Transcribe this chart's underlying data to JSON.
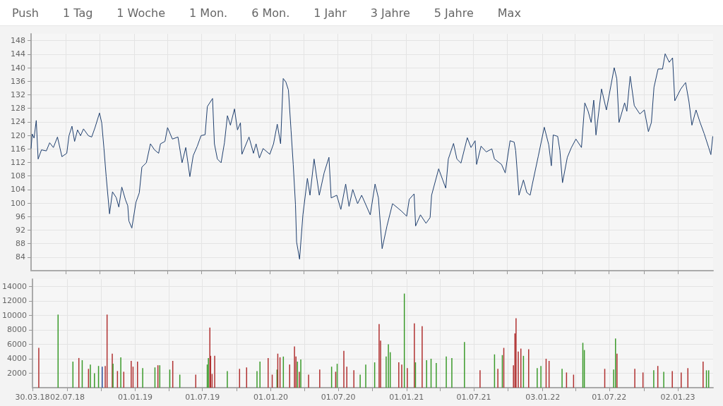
{
  "chart_data": [
    {
      "type": "other",
      "annotations": [
        "Push",
        "1 Tag",
        "1 Woche",
        "1 Mon.",
        "6 Mon.",
        "1 Jahr",
        "3 Jahre",
        "5 Jahre",
        "Max"
      ]
    },
    {
      "type": "line",
      "color": "#1f3f6e",
      "grid": true,
      "tick_labels": "y",
      "xlim": [
        "2018-03-30",
        "2023-04-07"
      ],
      "ylim": [
        80,
        150
      ],
      "yticks": [
        84,
        88,
        92,
        96,
        100,
        104,
        108,
        112,
        116,
        120,
        124,
        128,
        132,
        136,
        140,
        144,
        148
      ],
      "xticks": [
        {
          "value": "2018-07-02",
          "label": null
        },
        {
          "value": "2018-10-01",
          "label": null
        },
        {
          "value": "2019-01-01",
          "label": null
        },
        {
          "value": "2019-04-01",
          "label": null
        },
        {
          "value": "2019-07-01",
          "label": null
        },
        {
          "value": "2019-10-01",
          "label": null
        },
        {
          "value": "2020-01-01",
          "label": null
        },
        {
          "value": "2020-04-01",
          "label": null
        },
        {
          "value": "2020-07-01",
          "label": null
        },
        {
          "value": "2020-10-01",
          "label": null
        },
        {
          "value": "2021-01-01",
          "label": null
        },
        {
          "value": "2021-04-01",
          "label": null
        },
        {
          "value": "2021-07-01",
          "label": null
        },
        {
          "value": "2021-10-01",
          "label": null
        },
        {
          "value": "2022-01-03",
          "label": null
        },
        {
          "value": "2022-04-01",
          "label": null
        },
        {
          "value": "2022-07-01",
          "label": null
        },
        {
          "value": "2022-10-03",
          "label": null
        },
        {
          "value": "2023-01-02",
          "label": null
        }
      ],
      "x": [
        "2018-03-30",
        "2018-04-02",
        "2018-04-07",
        "2018-04-13",
        "2018-04-18",
        "2018-04-27",
        "2018-05-10",
        "2018-05-19",
        "2018-05-29",
        "2018-06-09",
        "2018-06-21",
        "2018-07-04",
        "2018-07-10",
        "2018-07-18",
        "2018-07-25",
        "2018-08-02",
        "2018-08-10",
        "2018-08-18",
        "2018-08-31",
        "2018-09-09",
        "2018-09-18",
        "2018-09-30",
        "2018-10-06",
        "2018-10-12",
        "2018-10-18",
        "2018-10-27",
        "2018-11-04",
        "2018-11-14",
        "2018-11-21",
        "2018-11-29",
        "2018-12-09",
        "2018-12-15",
        "2018-12-18",
        "2018-12-26",
        "2019-01-06",
        "2019-01-15",
        "2019-01-22",
        "2019-02-03",
        "2019-02-14",
        "2019-02-25",
        "2019-03-08",
        "2019-03-13",
        "2019-03-25",
        "2019-04-01",
        "2019-04-14",
        "2019-04-29",
        "2019-05-10",
        "2019-05-20",
        "2019-05-31",
        "2019-06-09",
        "2019-06-20",
        "2019-06-30",
        "2019-07-11",
        "2019-07-17",
        "2019-07-31",
        "2019-08-05",
        "2019-08-13",
        "2019-08-23",
        "2019-09-01",
        "2019-09-09",
        "2019-09-17",
        "2019-09-28",
        "2019-10-06",
        "2019-10-14",
        "2019-10-18",
        "2019-11-06",
        "2019-11-18",
        "2019-11-25",
        "2019-12-04",
        "2019-12-14",
        "2020-01-01",
        "2020-01-11",
        "2020-01-21",
        "2020-01-30",
        "2020-02-06",
        "2020-02-13",
        "2020-02-20",
        "2020-02-27",
        "2020-03-04",
        "2020-03-10",
        "2020-03-13",
        "2020-03-21",
        "2020-03-30",
        "2020-04-11",
        "2020-04-18",
        "2020-04-29",
        "2020-05-13",
        "2020-05-26",
        "2020-06-08",
        "2020-06-14",
        "2020-06-29",
        "2020-07-10",
        "2020-07-23",
        "2020-08-01",
        "2020-08-11",
        "2020-08-24",
        "2020-09-04",
        "2020-09-27",
        "2020-10-10",
        "2020-10-19",
        "2020-10-29",
        "2020-11-11",
        "2020-11-26",
        "2020-12-19",
        "2021-01-03",
        "2021-01-10",
        "2021-01-23",
        "2021-01-27",
        "2021-02-09",
        "2021-02-24",
        "2021-03-07",
        "2021-03-11",
        "2021-03-30",
        "2021-04-10",
        "2021-04-18",
        "2021-04-25",
        "2021-05-09",
        "2021-05-18",
        "2021-05-29",
        "2021-06-15",
        "2021-06-25",
        "2021-07-06",
        "2021-07-10",
        "2021-07-22",
        "2021-08-05",
        "2021-08-20",
        "2021-08-27",
        "2021-09-15",
        "2021-09-25",
        "2021-10-08",
        "2021-10-19",
        "2021-10-23",
        "2021-11-01",
        "2021-11-13",
        "2021-11-22",
        "2021-12-01",
        "2021-12-07",
        "2021-12-23",
        "2022-01-08",
        "2022-01-20",
        "2022-01-27",
        "2022-02-01",
        "2022-02-13",
        "2022-02-19",
        "2022-02-26",
        "2022-03-11",
        "2022-03-22",
        "2022-04-03",
        "2022-04-18",
        "2022-04-27",
        "2022-05-06",
        "2022-05-14",
        "2022-05-21",
        "2022-05-27",
        "2022-06-11",
        "2022-06-24",
        "2022-07-06",
        "2022-07-15",
        "2022-07-22",
        "2022-07-28",
        "2022-08-12",
        "2022-08-18",
        "2022-08-27",
        "2022-09-07",
        "2022-09-22",
        "2022-10-04",
        "2022-10-15",
        "2022-10-23",
        "2022-10-30",
        "2022-11-10",
        "2022-11-22",
        "2022-11-29",
        "2022-12-10",
        "2022-12-19",
        "2022-12-25",
        "2023-01-10",
        "2023-01-23",
        "2023-02-01",
        "2023-02-09",
        "2023-02-20",
        "2023-03-03",
        "2023-03-14",
        "2023-03-26",
        "2023-04-01",
        "2023-04-06"
      ],
      "values": [
        116.1,
        120.4,
        119.2,
        124.4,
        113,
        115.7,
        115.4,
        117.8,
        116.4,
        119.5,
        113.7,
        114.7,
        119.9,
        122.7,
        118.2,
        121.6,
        119.9,
        121.9,
        119.9,
        119.5,
        122.3,
        126.6,
        123.7,
        116.1,
        107.8,
        96.8,
        103.3,
        101.6,
        98.8,
        104.7,
        100.9,
        99.2,
        94.7,
        92.6,
        100.2,
        103,
        110.6,
        111.9,
        117.5,
        115.7,
        114.7,
        117.5,
        118.2,
        122.3,
        118.9,
        119.5,
        111.9,
        116.4,
        107.8,
        114,
        116.8,
        119.9,
        120.2,
        128.5,
        130.9,
        117.5,
        113,
        111.9,
        117.8,
        125.8,
        123,
        127.8,
        121.6,
        123.7,
        114.4,
        119.5,
        114.7,
        117.5,
        113.3,
        116.1,
        114.4,
        117.5,
        123.3,
        117.5,
        136.8,
        135.8,
        133.4,
        121.6,
        111.3,
        99.5,
        88.5,
        83.4,
        96.5,
        107.3,
        102.3,
        113,
        102.3,
        108.9,
        113.5,
        101.5,
        102.3,
        98.1,
        105.6,
        99,
        104,
        99.8,
        102.3,
        96.5,
        105.6,
        101.5,
        86.5,
        93.2,
        99.8,
        97.7,
        96.1,
        101.1,
        102.7,
        93.2,
        96.5,
        94,
        95.7,
        102.3,
        110.1,
        106.8,
        104.4,
        113,
        117.6,
        113,
        111.8,
        119.3,
        116.4,
        118.4,
        111.4,
        116.8,
        115.1,
        116,
        113,
        111.4,
        108.9,
        118.4,
        118,
        115.5,
        102.3,
        106.8,
        103.1,
        102.3,
        105.6,
        113.9,
        122.4,
        117.2,
        111,
        120.1,
        119.7,
        115.5,
        106,
        113.5,
        116.4,
        118.9,
        116.4,
        129.6,
        127.1,
        123.8,
        130.4,
        120.1,
        133.7,
        127.5,
        134.6,
        140,
        136.7,
        123.8,
        129.6,
        127.1,
        137.5,
        128.8,
        126.3,
        127.5,
        121.1,
        123.8,
        134.2,
        139.6,
        139.6,
        144.1,
        141.6,
        142.9,
        130.2,
        133.7,
        135.6,
        130,
        123,
        127.5,
        123.8,
        120.5,
        116.4,
        114.3,
        119.7
      ]
    },
    {
      "type": "bar",
      "grid": true,
      "xlim": [
        "2018-03-30",
        "2023-04-07"
      ],
      "ylim": [
        0,
        15000
      ],
      "yticks": [
        2000,
        4000,
        6000,
        8000,
        10000,
        12000,
        14000
      ],
      "xticks": [
        {
          "value": "2018-03-30",
          "label": "30.03.18"
        },
        {
          "value": "2018-07-02",
          "label": "02.07.18"
        },
        {
          "value": "2018-10-01",
          "label": null
        },
        {
          "value": "2019-01-01",
          "label": "01.01.19"
        },
        {
          "value": "2019-04-01",
          "label": null
        },
        {
          "value": "2019-07-01",
          "label": "01.07.19"
        },
        {
          "value": "2019-10-01",
          "label": null
        },
        {
          "value": "2020-01-01",
          "label": "01.01.20"
        },
        {
          "value": "2020-04-01",
          "label": null
        },
        {
          "value": "2020-07-01",
          "label": "01.07.20"
        },
        {
          "value": "2020-10-01",
          "label": null
        },
        {
          "value": "2021-01-01",
          "label": "01.01.21"
        },
        {
          "value": "2021-04-01",
          "label": null
        },
        {
          "value": "2021-07-01",
          "label": "01.07.21"
        },
        {
          "value": "2021-10-01",
          "label": null
        },
        {
          "value": "2022-01-03",
          "label": "03.01.22"
        },
        {
          "value": "2022-04-01",
          "label": null
        },
        {
          "value": "2022-07-01",
          "label": "01.07.22"
        },
        {
          "value": "2022-10-03",
          "label": null
        },
        {
          "value": "2023-01-02",
          "label": "02.01.23"
        }
      ],
      "x": [
        "2018-04-16",
        "2018-06-07",
        "2018-07-17",
        "2018-08-02",
        "2018-08-11",
        "2018-08-28",
        "2018-09-02",
        "2018-09-13",
        "2018-09-24",
        "2018-10-04",
        "2018-10-12",
        "2018-10-17",
        "2018-10-31",
        "2018-11-02",
        "2018-11-14",
        "2018-11-23",
        "2018-12-01",
        "2018-12-21",
        "2018-12-26",
        "2019-01-07",
        "2019-01-21",
        "2019-02-23",
        "2019-03-03",
        "2019-03-08",
        "2019-04-04",
        "2019-04-12",
        "2019-05-01",
        "2019-06-13",
        "2019-07-14",
        "2019-07-17",
        "2019-07-21",
        "2019-07-23",
        "2019-07-27",
        "2019-08-03",
        "2019-09-06",
        "2019-10-09",
        "2019-10-28",
        "2019-11-25",
        "2019-12-03",
        "2019-12-25",
        "2020-01-05",
        "2020-01-18",
        "2020-01-20",
        "2020-01-26",
        "2020-02-04",
        "2020-02-21",
        "2020-03-05",
        "2020-03-09",
        "2020-03-13",
        "2020-03-18",
        "2020-03-22",
        "2020-04-12",
        "2020-05-12",
        "2020-06-13",
        "2020-06-24",
        "2020-06-28",
        "2020-07-16",
        "2020-07-24",
        "2020-08-12",
        "2020-08-29",
        "2020-09-13",
        "2020-10-07",
        "2020-10-19",
        "2020-10-23",
        "2020-11-07",
        "2020-11-13",
        "2020-11-18",
        "2020-12-11",
        "2020-12-19",
        "2020-12-26",
        "2021-01-03",
        "2021-01-22",
        "2021-01-25",
        "2021-02-12",
        "2021-02-24",
        "2021-03-08",
        "2021-03-22",
        "2021-04-18",
        "2021-05-03",
        "2021-06-06",
        "2021-07-18",
        "2021-08-26",
        "2021-09-04",
        "2021-09-16",
        "2021-09-20",
        "2021-10-16",
        "2021-10-20",
        "2021-10-23",
        "2021-10-29",
        "2021-11-05",
        "2021-11-12",
        "2021-11-26",
        "2021-12-19",
        "2021-12-29",
        "2022-01-12",
        "2022-01-20",
        "2022-02-24",
        "2022-03-08",
        "2022-03-27",
        "2022-04-21",
        "2022-04-25",
        "2022-06-19",
        "2022-07-13",
        "2022-07-18",
        "2022-07-22",
        "2022-09-08",
        "2022-09-30",
        "2022-10-29",
        "2022-11-09",
        "2022-11-25",
        "2022-12-18",
        "2023-01-11",
        "2023-01-29",
        "2023-03-11",
        "2023-03-20",
        "2023-03-26"
      ],
      "values": [
        5500,
        10100,
        3600,
        4100,
        3800,
        2600,
        3200,
        2000,
        3000,
        2900,
        3000,
        10100,
        4700,
        3300,
        2300,
        4200,
        2200,
        3700,
        2900,
        3600,
        2700,
        2800,
        3100,
        3100,
        2500,
        3700,
        1800,
        1800,
        3200,
        4100,
        8300,
        4400,
        1900,
        4400,
        2300,
        2600,
        2800,
        2300,
        3600,
        4100,
        1800,
        2500,
        4700,
        4200,
        4300,
        3200,
        5700,
        4300,
        3600,
        2200,
        3900,
        1800,
        2500,
        2900,
        2200,
        3300,
        5100,
        2900,
        2400,
        1800,
        3200,
        3500,
        8800,
        6500,
        4300,
        6000,
        4900,
        3500,
        3200,
        13000,
        2700,
        8900,
        3500,
        8500,
        3800,
        4000,
        3400,
        4300,
        4100,
        6300,
        2400,
        4600,
        2600,
        4500,
        5500,
        3100,
        7500,
        9600,
        5000,
        5400,
        4400,
        5300,
        2700,
        3000,
        4000,
        3700,
        2600,
        2100,
        1800,
        6200,
        5200,
        2600,
        2500,
        6800,
        4700,
        2600,
        2100,
        2400,
        3000,
        2200,
        2300,
        2100,
        2700,
        3600,
        2400,
        2400
      ],
      "colors": [
        "#b03030",
        "#3a9a2a",
        "#3a9a2a",
        "#b03030",
        "#3a9a2a",
        "#b03030",
        "#3a9a2a",
        "#3a9a2a",
        "#3a9a2a",
        "#2b4f9e",
        "#b03030",
        "#b03030",
        "#b03030",
        "#3a9a2a",
        "#b03030",
        "#3a9a2a",
        "#b03030",
        "#b03030",
        "#b03030",
        "#b03030",
        "#3a9a2a",
        "#3a9a2a",
        "#b03030",
        "#3a9a2a",
        "#3a9a2a",
        "#b03030",
        "#3a9a2a",
        "#b03030",
        "#3a9a2a",
        "#3a9a2a",
        "#b03030",
        "#b03030",
        "#b03030",
        "#b03030",
        "#3a9a2a",
        "#b03030",
        "#b03030",
        "#3a9a2a",
        "#3a9a2a",
        "#b03030",
        "#b03030",
        "#3a9a2a",
        "#b03030",
        "#b03030",
        "#3a9a2a",
        "#b03030",
        "#b03030",
        "#b03030",
        "#3a9a2a",
        "#b03030",
        "#3a9a2a",
        "#b03030",
        "#b03030",
        "#3a9a2a",
        "#b03030",
        "#3a9a2a",
        "#b03030",
        "#b03030",
        "#b03030",
        "#3a9a2a",
        "#3a9a2a",
        "#3a9a2a",
        "#b03030",
        "#b03030",
        "#3a9a2a",
        "#3a9a2a",
        "#3a9a2a",
        "#b03030",
        "#b03030",
        "#3a9a2a",
        "#b03030",
        "#b03030",
        "#3a9a2a",
        "#b03030",
        "#3a9a2a",
        "#3a9a2a",
        "#3a9a2a",
        "#3a9a2a",
        "#3a9a2a",
        "#3a9a2a",
        "#b03030",
        "#3a9a2a",
        "#b03030",
        "#3a9a2a",
        "#b03030",
        "#b03030",
        "#b03030",
        "#b03030",
        "#b03030",
        "#b03030",
        "#3a9a2a",
        "#b03030",
        "#3a9a2a",
        "#3a9a2a",
        "#b03030",
        "#b03030",
        "#3a9a2a",
        "#b03030",
        "#b03030",
        "#3a9a2a",
        "#3a9a2a",
        "#b03030",
        "#3a9a2a",
        "#3a9a2a",
        "#b03030",
        "#b03030",
        "#b03030",
        "#3a9a2a",
        "#b03030",
        "#3a9a2a",
        "#b03030",
        "#b03030",
        "#b03030",
        "#b03030",
        "#3a9a2a",
        "#3a9a2a"
      ]
    }
  ]
}
